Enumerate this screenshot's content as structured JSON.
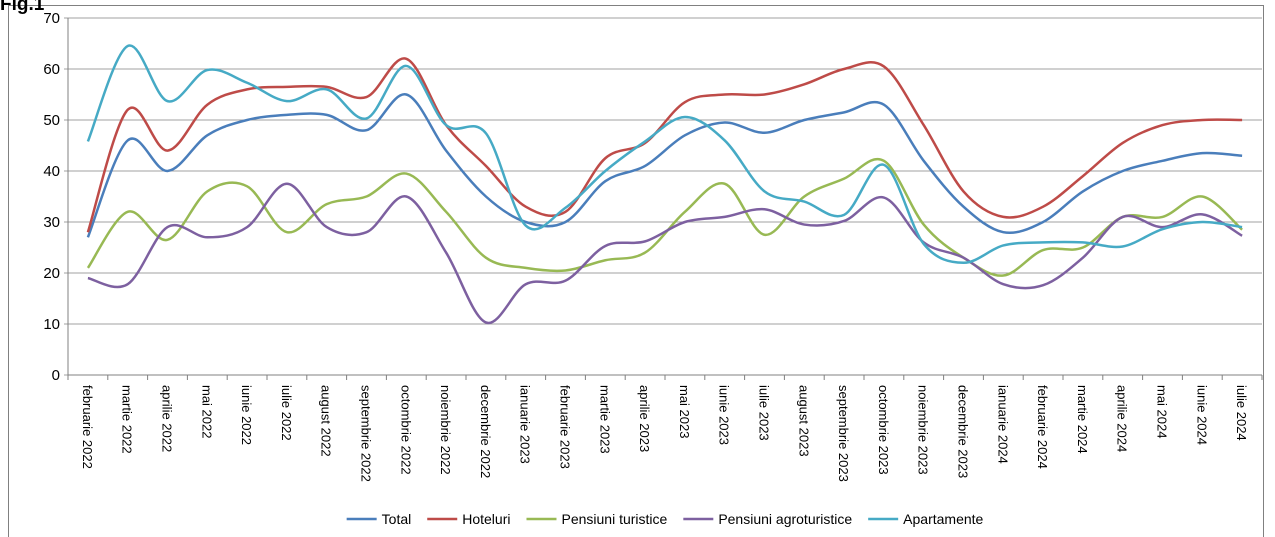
{
  "chart_data": {
    "type": "line",
    "title": "Fig.1",
    "categories": [
      "februarie 2022",
      "martie 2022",
      "aprilie 2022",
      "mai 2022",
      "iunie 2022",
      "iulie 2022",
      "august 2022",
      "septembrie 2022",
      "octombrie 2022",
      "noiembrie 2022",
      "decembrie 2022",
      "ianuarie 2023",
      "februarie 2023",
      "martie 2023",
      "aprilie 2023",
      "mai 2023",
      "iunie 2023",
      "iulie 2023",
      "august 2023",
      "septembrie 2023",
      "octombrie 2023",
      "noiembrie 2023",
      "decembrie 2023",
      "ianuarie 2024",
      "februarie 2024",
      "martie 2024",
      "aprilie 2024",
      "mai 2024",
      "iunie 2024",
      "iulie 2024"
    ],
    "series": [
      {
        "name": "Total",
        "color": "#4a7ebb",
        "values": [
          27,
          46,
          40,
          47,
          50,
          51,
          51,
          48,
          55,
          44,
          35,
          30,
          30,
          38,
          41,
          47,
          49.5,
          47.5,
          50,
          51.5,
          53,
          42,
          33,
          28,
          30,
          36,
          40,
          42,
          43.5,
          43
        ]
      },
      {
        "name": "Hoteluri",
        "color": "#be4b48",
        "values": [
          28,
          52,
          44,
          53,
          56,
          56.5,
          56.5,
          54.5,
          62,
          49,
          41,
          33,
          32,
          42.5,
          45.5,
          53.5,
          55,
          55,
          57,
          60,
          60.5,
          49,
          36,
          31,
          33,
          39,
          45.5,
          49,
          50,
          50
        ]
      },
      {
        "name": "Pensiuni turistice",
        "color": "#98b954",
        "values": [
          21,
          32,
          26.5,
          36,
          37,
          28,
          33.5,
          35,
          39.5,
          32,
          23,
          21,
          20.5,
          22.5,
          24,
          32,
          37.5,
          27.5,
          35,
          38.5,
          42,
          29.5,
          23,
          19.5,
          24.5,
          25,
          31,
          31,
          35,
          28.5
        ]
      },
      {
        "name": "Pensiuni agroturistice",
        "color": "#7d60a0",
        "values": [
          19,
          17.8,
          29,
          27,
          29,
          37.5,
          29,
          28,
          35,
          24,
          10.3,
          17.8,
          18.5,
          25.3,
          26.2,
          30,
          31,
          32.5,
          29.5,
          30.2,
          34.8,
          26,
          23,
          17.8,
          17.6,
          23,
          31,
          29,
          31.5,
          27.3
        ]
      },
      {
        "name": "Apartamente",
        "color": "#46aac5",
        "values": [
          45.8,
          64.5,
          53.7,
          59.8,
          57.3,
          53.7,
          56,
          50.3,
          60.6,
          49,
          47.4,
          29.3,
          32.8,
          40,
          45.8,
          50.6,
          46,
          36,
          34,
          31.4,
          41.2,
          25.7,
          22,
          25.4,
          26,
          26,
          25.2,
          28.6,
          30,
          29
        ]
      }
    ],
    "ylim": [
      0,
      70
    ],
    "yticks": [
      0,
      10,
      20,
      30,
      40,
      50,
      60,
      70
    ],
    "grid": true,
    "smooth": true,
    "legend": "bottom"
  }
}
